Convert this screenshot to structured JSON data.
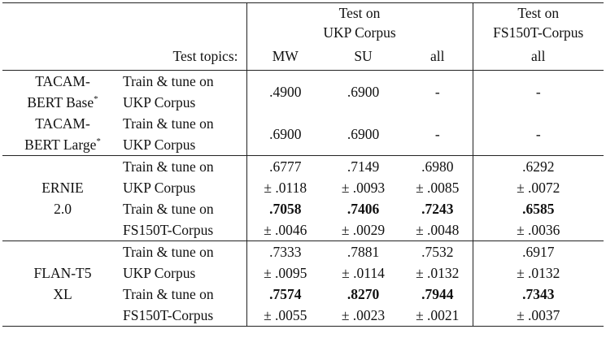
{
  "header": {
    "group1_line1": "Test on",
    "group1_line2": "UKP Corpus",
    "group2_line1": "Test on",
    "group2_line2": "FS150T-Corpus",
    "topics_label": "Test topics:",
    "col_mw": "MW",
    "col_su": "SU",
    "col_all1": "all",
    "col_all2": "all"
  },
  "models": [
    {
      "name_line1": "TACAM-",
      "name_line2": "BERT Base",
      "name_mark": "*",
      "train1": "Train & tune on",
      "train2": "UKP Corpus",
      "mw": ".4900",
      "su": ".6900",
      "all_ukp": "-",
      "all_fs": "-"
    },
    {
      "name_line1": "TACAM-",
      "name_line2": "BERT Large",
      "name_mark": "*",
      "train1": "Train & tune on",
      "train2": "UKP Corpus",
      "mw": ".6900",
      "su": ".6900",
      "all_ukp": "-",
      "all_fs": "-"
    }
  ],
  "ernie": {
    "name_line1": "ERNIE",
    "name_line2": "2.0",
    "rows": [
      {
        "train1": "Train & tune on",
        "train2": "UKP Corpus",
        "mw": ".6777",
        "mw_sd": "± .0118",
        "su": ".7149",
        "su_sd": "± .0093",
        "all_ukp": ".6980",
        "all_ukp_sd": "± .0085",
        "all_fs": ".6292",
        "all_fs_sd": "± .0072"
      },
      {
        "train1": "Train & tune on",
        "train2": "FS150T-Corpus",
        "mw": ".7058",
        "mw_sd": "± .0046",
        "su": ".7406",
        "su_sd": "± .0029",
        "all_ukp": ".7243",
        "all_ukp_sd": "± .0048",
        "all_fs": ".6585",
        "all_fs_sd": "± .0036"
      }
    ]
  },
  "flan": {
    "name_line1": "FLAN-T5",
    "name_line2": "XL",
    "rows": [
      {
        "train1": "Train & tune on",
        "train2": "UKP Corpus",
        "mw": ".7333",
        "mw_sd": "± .0095",
        "su": ".7881",
        "su_sd": "± .0114",
        "all_ukp": ".7532",
        "all_ukp_sd": "± .0132",
        "all_fs": ".6917",
        "all_fs_sd": "± .0132"
      },
      {
        "train1": "Train & tune on",
        "train2": "FS150T-Corpus",
        "mw": ".7574",
        "mw_sd": "± .0055",
        "su": ".8270",
        "su_sd": "± .0023",
        "all_ukp": ".7944",
        "all_ukp_sd": "± .0021",
        "all_fs": ".7343",
        "all_fs_sd": "± .0037"
      }
    ]
  }
}
